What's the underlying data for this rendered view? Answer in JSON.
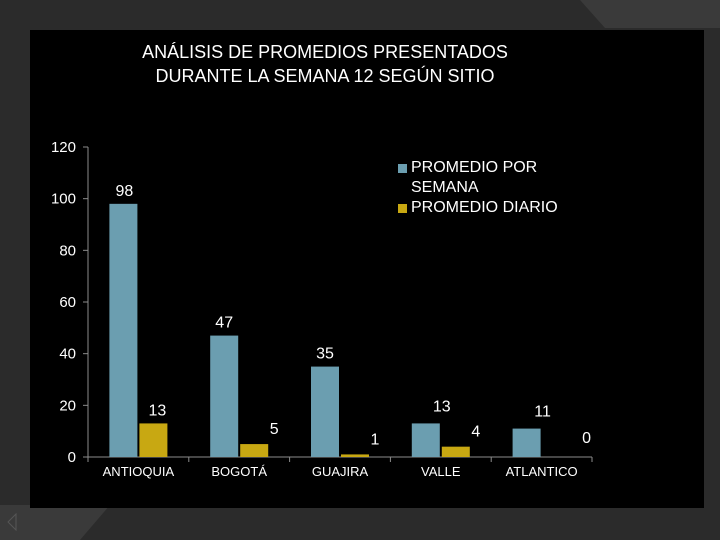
{
  "chart_data": {
    "type": "bar",
    "title_lines": [
      "ANÁLISIS DE PROMEDIOS PRESENTADOS",
      "DURANTE LA SEMANA 12 SEGÚN SITIO"
    ],
    "categories": [
      "ANTIOQUIA",
      "BOGOTÁ",
      "GUAJIRA",
      "VALLE",
      "ATLANTICO"
    ],
    "series": [
      {
        "name": "PROMEDIO POR SEMANA",
        "values": [
          98,
          47,
          35,
          13,
          11
        ],
        "color": "#6b9eb0"
      },
      {
        "name": "PROMEDIO DIARIO",
        "values": [
          13,
          5,
          1,
          4,
          0
        ],
        "color": "#c8a812"
      }
    ],
    "yticks": [
      "0",
      "20",
      "40",
      "60",
      "80",
      "100",
      "120"
    ],
    "ylim": [
      0,
      120
    ],
    "legend_position": "top-right",
    "grid": false
  },
  "colors": {
    "background": "#000000",
    "frame": "#2b2b2b",
    "axis": "#8c8c8c",
    "text": "#ffffff"
  }
}
